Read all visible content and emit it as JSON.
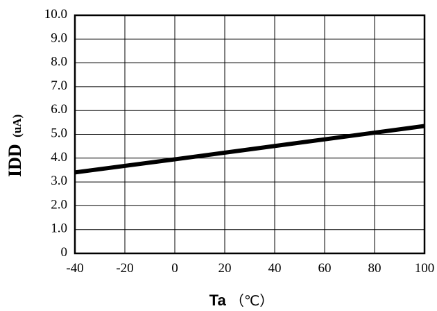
{
  "chart_data": {
    "type": "line",
    "ylabel": "IDD",
    "ylabel_unit": "(uA)",
    "xlabel": "Ta",
    "xlabel_unit": "（℃）",
    "xlim": [
      -40,
      100
    ],
    "ylim": [
      0,
      10
    ],
    "x_ticks": [
      "-40",
      "-20",
      "0",
      "20",
      "40",
      "60",
      "80",
      "100"
    ],
    "y_ticks": [
      "0",
      "1.0",
      "2.0",
      "3.0",
      "4.0",
      "5.0",
      "6.0",
      "7.0",
      "8.0",
      "9.0",
      "10.0"
    ],
    "grid": true,
    "series": [
      {
        "x": [
          -40,
          0,
          100
        ],
        "y": [
          3.4,
          3.95,
          5.35
        ],
        "color": "#000000"
      }
    ]
  }
}
